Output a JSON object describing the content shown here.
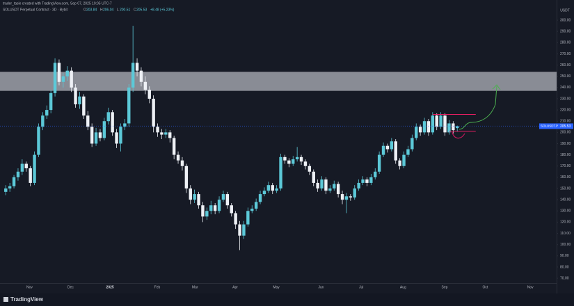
{
  "chart_data": {
    "type": "candlestick",
    "credit": "trader_tasie created with TradingView.com, Sep 07, 2025 19:05 UTC-7",
    "symbol": "SOLUSDT Perpetual Contract · 3D · Bybit",
    "ohlc_letters": [
      "O",
      "H",
      "L",
      "C"
    ],
    "change": "+8.48 (+5.23%)",
    "currency": "USDT",
    "symbol_tag": "SOLUSDT.P",
    "brand": "TradingView",
    "up_color": "#5cc9d8",
    "down_color": "#eef1f6",
    "grid": false,
    "xlim": [
      -1.4,
      134.2
    ],
    "xticks": [
      {
        "value": 5.8,
        "label": "Nov"
      },
      {
        "value": 15.8,
        "label": "Dec"
      },
      {
        "value": 25.4,
        "label": "2025"
      },
      {
        "value": 36.9,
        "label": "Feb"
      },
      {
        "value": 46.1,
        "label": "Mar"
      },
      {
        "value": 55.9,
        "label": "Apr"
      },
      {
        "value": 65.9,
        "label": "May"
      },
      {
        "value": 76.8,
        "label": "Jun"
      },
      {
        "value": 86.6,
        "label": "Jul"
      },
      {
        "value": 96.8,
        "label": "Aug"
      },
      {
        "value": 106.9,
        "label": "Sep"
      },
      {
        "value": 116.8,
        "label": "Oct"
      },
      {
        "value": 127.8,
        "label": "Nov"
      }
    ],
    "ylim": [
      62.6,
      311.8
    ],
    "yticks": [
      {
        "value": 70,
        "label": "70.00"
      },
      {
        "value": 80,
        "label": "80.00"
      },
      {
        "value": 90,
        "label": "90.00"
      },
      {
        "value": 100,
        "label": "100.00"
      },
      {
        "value": 110,
        "label": "110.00"
      },
      {
        "value": 120,
        "label": "120.00"
      },
      {
        "value": 130,
        "label": "130.00"
      },
      {
        "value": 140,
        "label": "140.00"
      },
      {
        "value": 150,
        "label": "150.00"
      },
      {
        "value": 160,
        "label": "160.00"
      },
      {
        "value": 170,
        "label": "170.00"
      },
      {
        "value": 180,
        "label": "180.00"
      },
      {
        "value": 190,
        "label": "190.00"
      },
      {
        "value": 200,
        "label": "200.00"
      },
      {
        "value": 210,
        "label": "210.00"
      },
      {
        "value": 220,
        "label": "220.00"
      },
      {
        "value": 230,
        "label": "230.00"
      },
      {
        "value": 240,
        "label": "240.00"
      },
      {
        "value": 250,
        "label": "250.00"
      },
      {
        "value": 260,
        "label": "260.00"
      },
      {
        "value": 270,
        "label": "270.00"
      },
      {
        "value": 280,
        "label": "280.00"
      },
      {
        "value": 290,
        "label": "290.00"
      },
      {
        "value": 300,
        "label": "300.00"
      }
    ],
    "zone": {
      "range": [
        237,
        254
      ],
      "color": "#b0b3bb"
    },
    "levels": [
      {
        "value": 216,
        "color": "#e91e63"
      },
      {
        "value": 201,
        "color": "#e91e63"
      }
    ],
    "candles": [
      [
        147,
        153,
        144,
        150
      ],
      [
        150,
        155,
        147,
        152
      ],
      [
        152,
        162,
        150,
        160
      ],
      [
        160,
        168,
        157,
        165
      ],
      [
        165,
        176,
        162,
        172
      ],
      [
        172,
        174,
        165,
        168
      ],
      [
        168,
        170,
        152,
        155
      ],
      [
        155,
        183,
        153,
        180
      ],
      [
        180,
        208,
        178,
        205
      ],
      [
        205,
        218,
        202,
        215
      ],
      [
        215,
        224,
        212,
        220
      ],
      [
        220,
        238,
        217,
        235
      ],
      [
        235,
        266,
        232,
        262
      ],
      [
        262,
        265,
        242,
        245
      ],
      [
        245,
        253,
        240,
        250
      ],
      [
        250,
        259,
        246,
        255
      ],
      [
        255,
        258,
        236,
        240
      ],
      [
        240,
        243,
        222,
        225
      ],
      [
        225,
        236,
        221,
        232
      ],
      [
        232,
        234,
        212,
        215
      ],
      [
        215,
        219,
        202,
        205
      ],
      [
        205,
        208,
        187,
        190
      ],
      [
        190,
        204,
        188,
        200
      ],
      [
        200,
        203,
        192,
        195
      ],
      [
        195,
        213,
        193,
        210
      ],
      [
        210,
        222,
        207,
        218
      ],
      [
        218,
        220,
        197,
        200
      ],
      [
        200,
        203,
        186,
        190
      ],
      [
        190,
        208,
        183,
        205
      ],
      [
        205,
        212,
        202,
        208
      ],
      [
        208,
        243,
        205,
        240
      ],
      [
        240,
        295,
        236,
        262
      ],
      [
        262,
        266,
        250,
        255
      ],
      [
        255,
        258,
        241,
        245
      ],
      [
        245,
        250,
        234,
        238
      ],
      [
        238,
        241,
        226,
        230
      ],
      [
        230,
        233,
        200,
        205
      ],
      [
        205,
        208,
        196,
        200
      ],
      [
        200,
        203,
        194,
        198
      ],
      [
        198,
        203,
        195,
        200
      ],
      [
        200,
        202,
        191,
        195
      ],
      [
        195,
        197,
        176,
        180
      ],
      [
        180,
        183,
        172,
        175
      ],
      [
        175,
        178,
        166,
        170
      ],
      [
        170,
        172,
        146,
        150
      ],
      [
        150,
        153,
        136,
        140
      ],
      [
        140,
        149,
        137,
        145
      ],
      [
        145,
        147,
        132,
        135
      ],
      [
        135,
        138,
        120,
        125
      ],
      [
        125,
        133,
        122,
        130
      ],
      [
        130,
        139,
        127,
        135
      ],
      [
        135,
        137,
        127,
        130
      ],
      [
        130,
        143,
        128,
        140
      ],
      [
        140,
        148,
        138,
        145
      ],
      [
        145,
        147,
        132,
        135
      ],
      [
        135,
        137,
        125,
        128
      ],
      [
        128,
        130,
        114,
        118
      ],
      [
        118,
        121,
        95,
        108
      ],
      [
        108,
        121,
        105,
        118
      ],
      [
        118,
        133,
        116,
        130
      ],
      [
        130,
        135,
        128,
        132
      ],
      [
        132,
        141,
        130,
        138
      ],
      [
        138,
        148,
        136,
        145
      ],
      [
        145,
        151,
        143,
        148
      ],
      [
        148,
        156,
        146,
        153
      ],
      [
        153,
        155,
        145,
        148
      ],
      [
        148,
        153,
        146,
        150
      ],
      [
        150,
        181,
        148,
        178
      ],
      [
        178,
        180,
        172,
        175
      ],
      [
        175,
        177,
        169,
        172
      ],
      [
        172,
        179,
        170,
        176
      ],
      [
        176,
        187,
        174,
        178
      ],
      [
        178,
        180,
        171,
        174
      ],
      [
        174,
        176,
        167,
        170
      ],
      [
        170,
        172,
        162,
        165
      ],
      [
        165,
        167,
        152,
        155
      ],
      [
        155,
        158,
        147,
        150
      ],
      [
        150,
        161,
        148,
        158
      ],
      [
        158,
        160,
        145,
        148
      ],
      [
        148,
        153,
        146,
        150
      ],
      [
        150,
        157,
        148,
        154
      ],
      [
        154,
        156,
        142,
        145
      ],
      [
        145,
        148,
        136,
        140
      ],
      [
        140,
        146,
        128,
        143
      ],
      [
        143,
        145,
        139,
        142
      ],
      [
        142,
        153,
        140,
        150
      ],
      [
        150,
        158,
        148,
        155
      ],
      [
        155,
        161,
        153,
        158
      ],
      [
        158,
        160,
        152,
        155
      ],
      [
        155,
        163,
        153,
        160
      ],
      [
        160,
        168,
        158,
        165
      ],
      [
        165,
        183,
        163,
        180
      ],
      [
        180,
        191,
        178,
        188
      ],
      [
        188,
        190,
        182,
        185
      ],
      [
        185,
        195,
        183,
        192
      ],
      [
        192,
        194,
        172,
        175
      ],
      [
        175,
        177,
        167,
        170
      ],
      [
        170,
        183,
        168,
        180
      ],
      [
        180,
        188,
        178,
        185
      ],
      [
        185,
        198,
        183,
        195
      ],
      [
        195,
        208,
        193,
        205
      ],
      [
        205,
        207,
        197,
        200
      ],
      [
        200,
        213,
        198,
        210
      ],
      [
        210,
        212,
        197,
        200
      ],
      [
        200,
        218,
        198,
        215
      ],
      [
        215,
        217,
        202,
        205
      ],
      [
        205,
        218,
        203,
        215
      ],
      [
        215,
        217,
        197,
        200
      ],
      [
        200,
        211,
        198,
        208
      ],
      [
        208,
        210,
        199,
        202
      ],
      [
        203.84,
        206.04,
        200.51,
        205.53
      ]
    ]
  }
}
